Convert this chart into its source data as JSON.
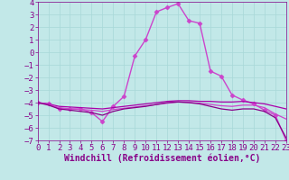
{
  "xlabel": "Windchill (Refroidissement éolien,°C)",
  "xlim": [
    0,
    23
  ],
  "ylim": [
    -7,
    4
  ],
  "yticks": [
    4,
    3,
    2,
    1,
    0,
    -1,
    -2,
    -3,
    -4,
    -5,
    -6,
    -7
  ],
  "xticks": [
    0,
    1,
    2,
    3,
    4,
    5,
    6,
    7,
    8,
    9,
    10,
    11,
    12,
    13,
    14,
    15,
    16,
    17,
    18,
    19,
    20,
    21,
    22,
    23
  ],
  "background_color": "#c2e8e8",
  "grid_color": "#a8d8d8",
  "lines": [
    {
      "x": [
        0,
        1,
        2,
        3,
        4,
        5,
        6,
        7,
        8,
        9,
        10,
        11,
        12,
        13,
        14,
        15,
        16,
        17,
        18,
        19,
        20,
        21,
        22,
        23
      ],
      "y": [
        -4.0,
        -4.1,
        -4.5,
        -4.5,
        -4.5,
        -4.8,
        -5.5,
        -4.3,
        -3.5,
        -0.3,
        1.0,
        3.2,
        3.55,
        3.85,
        2.5,
        2.3,
        -1.5,
        -1.9,
        -3.4,
        -3.8,
        -4.1,
        -4.6,
        -5.0,
        -7.0
      ],
      "color": "#cc44cc",
      "marker": "D",
      "markersize": 2.5,
      "linewidth": 1.0
    },
    {
      "x": [
        0,
        1,
        2,
        3,
        4,
        5,
        6,
        7,
        8,
        9,
        10,
        11,
        12,
        13,
        14,
        15,
        16,
        17,
        18,
        19,
        20,
        21,
        22,
        23
      ],
      "y": [
        -4.0,
        -4.1,
        -4.3,
        -4.35,
        -4.4,
        -4.45,
        -4.5,
        -4.4,
        -4.3,
        -4.2,
        -4.1,
        -4.0,
        -3.9,
        -3.85,
        -3.85,
        -3.9,
        -3.9,
        -3.95,
        -3.95,
        -3.9,
        -4.0,
        -4.1,
        -4.3,
        -4.5
      ],
      "color": "#aa00aa",
      "marker": null,
      "markersize": 0,
      "linewidth": 0.9
    },
    {
      "x": [
        0,
        1,
        2,
        3,
        4,
        5,
        6,
        7,
        8,
        9,
        10,
        11,
        12,
        13,
        14,
        15,
        16,
        17,
        18,
        19,
        20,
        21,
        22,
        23
      ],
      "y": [
        -4.0,
        -4.15,
        -4.4,
        -4.5,
        -4.55,
        -4.6,
        -4.7,
        -4.55,
        -4.45,
        -4.35,
        -4.25,
        -4.15,
        -4.05,
        -3.95,
        -3.98,
        -4.05,
        -4.15,
        -4.25,
        -4.3,
        -4.2,
        -4.2,
        -4.4,
        -4.9,
        -5.3
      ],
      "color": "#cc44cc",
      "marker": null,
      "markersize": 0,
      "linewidth": 0.9
    },
    {
      "x": [
        0,
        1,
        2,
        3,
        4,
        5,
        6,
        7,
        8,
        9,
        10,
        11,
        12,
        13,
        14,
        15,
        16,
        17,
        18,
        19,
        20,
        21,
        22,
        23
      ],
      "y": [
        -4.0,
        -4.2,
        -4.5,
        -4.6,
        -4.7,
        -4.8,
        -5.0,
        -4.7,
        -4.5,
        -4.4,
        -4.3,
        -4.15,
        -4.0,
        -3.95,
        -4.0,
        -4.1,
        -4.3,
        -4.5,
        -4.6,
        -4.5,
        -4.5,
        -4.7,
        -5.2,
        -6.8
      ],
      "color": "#880088",
      "marker": null,
      "markersize": 0,
      "linewidth": 0.9
    }
  ],
  "font_color": "#880088",
  "tick_fontsize": 6.5,
  "label_fontsize": 7
}
